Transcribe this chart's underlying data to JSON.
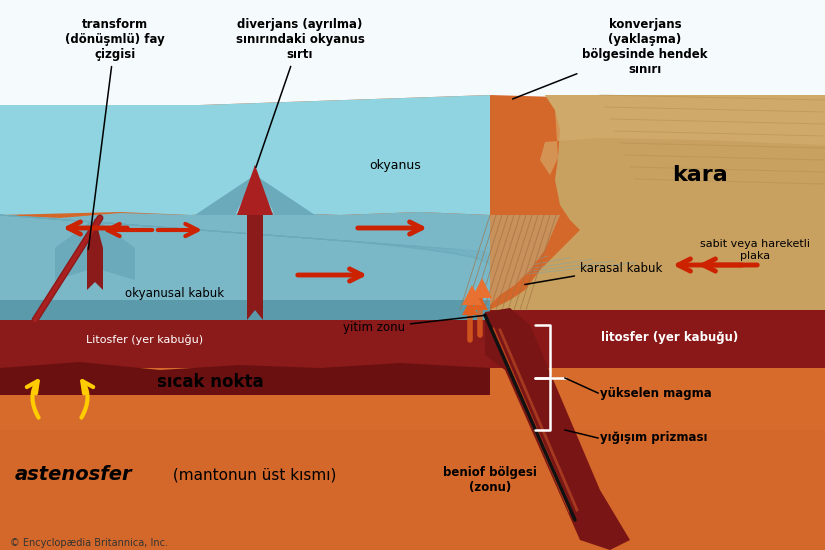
{
  "bg_color": "#d4682a",
  "sky_color": "#f0f8ff",
  "ocean_water_color": "#7ec8d5",
  "ocean_crust_color": "#7ab8c8",
  "ocean_crust_dark": "#6aaabb",
  "litho_color": "#8b1a1a",
  "litho_dark": "#6b1010",
  "cont_crust_color": "#c8a060",
  "cont_crust_dark": "#b08040",
  "subduct_color": "#7a1818",
  "wedge_color": "#c8905a",
  "asthen_color": "#d4682a",
  "asthen_light": "#e07830",
  "magma_orange": "#e06020",
  "red_arrow": "#cc2200",
  "yellow_arrow": "#ffcc00",
  "white": "#ffffff",
  "black": "#000000",
  "copyright_text": "© Encyclopædia Britannica, Inc.",
  "labels": {
    "transform": "transform\n(dönüşmlü) fay\nçizgisi",
    "divergans": "diverjans (ayrılma)\nsınırındaki okyanus\nsırtı",
    "konverjans": "konverjans\n(yaklaşma)\nbölgesinde hendek\nsınırı",
    "okyanus": "okyanus",
    "kara": "kara",
    "sabit": "sabit veya hareketli\nplaka",
    "karasal": "karasal kabuk",
    "okyanusal": "okyanusal kabuk",
    "litosfer1": "Litosfer (yer kabuğu)",
    "litosfer2": "litosfer (yer kabuğu)",
    "yitim": "yitim zonu",
    "sicak": "sıcak nokta",
    "astenosfer_bold": "astenosfer",
    "astenosfer_rest": " (mantonun üst kısmı)",
    "yukselen": "yükselen magma",
    "yigisim": "yığışım prizması",
    "beniof": "beniof bölgesi\n(zonu)"
  }
}
